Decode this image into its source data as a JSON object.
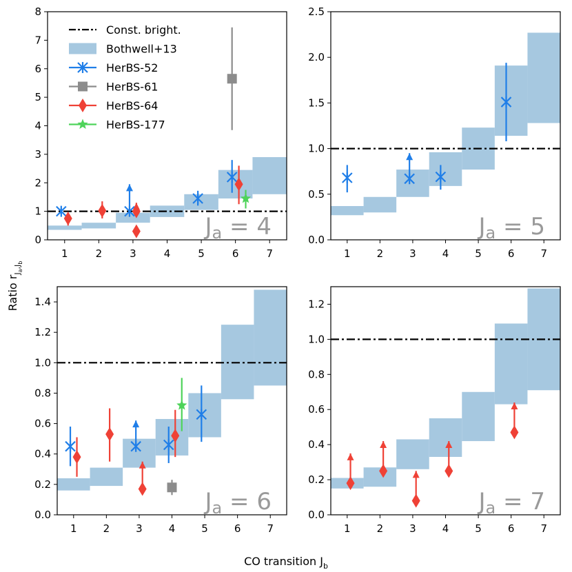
{
  "figure": {
    "xlabel": "CO transition J",
    "xlabel_sub": "b",
    "ylabel": "Ratio r",
    "ylabel_sub": "J",
    "ylabel_sub_a": "a",
    "ylabel_sub_sep": ",J",
    "ylabel_sub_b": "b"
  },
  "colors": {
    "const": "#000000",
    "band": "#a6c8e0",
    "HerBS-52": "#1f7ee8",
    "HerBS-61": "#8c8c8c",
    "HerBS-64": "#ef4136",
    "HerBS-177": "#4ed35a"
  },
  "legend": {
    "items": [
      {
        "label": "Const. bright.",
        "kind": "line"
      },
      {
        "label": "Bothwell+13",
        "kind": "band"
      },
      {
        "label": "HerBS-52",
        "kind": "x"
      },
      {
        "label": "HerBS-61",
        "kind": "square"
      },
      {
        "label": "HerBS-64",
        "kind": "diamond"
      },
      {
        "label": "HerBS-177",
        "kind": "star"
      }
    ]
  },
  "chart_data": [
    {
      "type": "errorbar",
      "panel_label": "J",
      "panel_label_sub": "a",
      "panel_label_value": " = 4",
      "Ja": 4,
      "xlim": [
        0.5,
        7.5
      ],
      "ylim": [
        0,
        8
      ],
      "xticks": [
        1,
        2,
        3,
        4,
        5,
        6,
        7
      ],
      "yticks": [
        0,
        1,
        2,
        3,
        4,
        5,
        6,
        7,
        8
      ],
      "ytick_labels": [
        "0",
        "1",
        "2",
        "3",
        "4",
        "5",
        "6",
        "7",
        "8"
      ],
      "const_line": 1.0,
      "band": [
        {
          "x": 1,
          "low": 0.35,
          "high": 0.5
        },
        {
          "x": 2,
          "low": 0.4,
          "high": 0.6
        },
        {
          "x": 3,
          "low": 0.6,
          "high": 0.95
        },
        {
          "x": 4,
          "low": 0.8,
          "high": 1.2
        },
        {
          "x": 5,
          "low": 1.05,
          "high": 1.6
        },
        {
          "x": 6,
          "low": 1.45,
          "high": 2.45
        },
        {
          "x": 7,
          "low": 1.6,
          "high": 2.9
        }
      ],
      "series": [
        {
          "name": "HerBS-52",
          "points": [
            {
              "x": 0.9,
              "y": 1.0,
              "lo": 0.9,
              "hi": 1.1
            },
            {
              "x": 2.9,
              "y": 1.0,
              "lo": 1.0,
              "hi": 1.95,
              "limit": "lower"
            },
            {
              "x": 4.9,
              "y": 1.45,
              "lo": 1.2,
              "hi": 1.72
            },
            {
              "x": 5.9,
              "y": 2.2,
              "lo": 1.65,
              "hi": 2.8
            }
          ]
        },
        {
          "name": "HerBS-61",
          "points": [
            {
              "x": 5.9,
              "y": 5.65,
              "lo": 3.85,
              "hi": 7.45
            }
          ]
        },
        {
          "name": "HerBS-64",
          "points": [
            {
              "x": 1.1,
              "y": 0.75,
              "lo": 0.5,
              "hi": 0.95
            },
            {
              "x": 2.1,
              "y": 1.02,
              "lo": 0.75,
              "hi": 1.35
            },
            {
              "x": 3.1,
              "y": 1.0,
              "lo": 1.0,
              "hi": 1.3,
              "limit": "lower"
            },
            {
              "x": 3.1,
              "y": 0.3,
              "lo": 0.15,
              "hi": 0.45
            },
            {
              "x": 6.1,
              "y": 1.95,
              "lo": 1.25,
              "hi": 2.6
            }
          ]
        },
        {
          "name": "HerBS-177",
          "points": [
            {
              "x": 6.3,
              "y": 1.45,
              "lo": 1.1,
              "hi": 1.75
            }
          ]
        }
      ]
    },
    {
      "type": "errorbar",
      "panel_label": "J",
      "panel_label_sub": "a",
      "panel_label_value": " = 5",
      "Ja": 5,
      "xlim": [
        0.5,
        7.5
      ],
      "ylim": [
        0,
        2.5
      ],
      "xticks": [
        1,
        2,
        3,
        4,
        5,
        6,
        7
      ],
      "yticks": [
        0,
        0.5,
        1.0,
        1.5,
        2.0,
        2.5
      ],
      "ytick_labels": [
        "0.0",
        "0.5",
        "1.0",
        "1.5",
        "2.0",
        "2.5"
      ],
      "const_line": 1.0,
      "band": [
        {
          "x": 1,
          "low": 0.27,
          "high": 0.37
        },
        {
          "x": 2,
          "low": 0.3,
          "high": 0.47
        },
        {
          "x": 3,
          "low": 0.47,
          "high": 0.77
        },
        {
          "x": 4,
          "low": 0.59,
          "high": 0.96
        },
        {
          "x": 5,
          "low": 0.77,
          "high": 1.23
        },
        {
          "x": 6,
          "low": 1.14,
          "high": 1.91
        },
        {
          "x": 7,
          "low": 1.28,
          "high": 2.27
        }
      ],
      "series": [
        {
          "name": "HerBS-52",
          "points": [
            {
              "x": 1,
              "y": 0.68,
              "lo": 0.52,
              "hi": 0.82
            },
            {
              "x": 2.9,
              "y": 0.67,
              "lo": 0.67,
              "hi": 0.95,
              "limit": "lower"
            },
            {
              "x": 3.85,
              "y": 0.69,
              "lo": 0.55,
              "hi": 0.82
            },
            {
              "x": 5.85,
              "y": 1.51,
              "lo": 1.08,
              "hi": 1.94
            }
          ]
        }
      ]
    },
    {
      "type": "errorbar",
      "panel_label": "J",
      "panel_label_sub": "a",
      "panel_label_value": " = 6",
      "Ja": 6,
      "xlim": [
        0.5,
        7.5
      ],
      "ylim": [
        0,
        1.5
      ],
      "xticks": [
        1,
        2,
        3,
        4,
        5,
        6,
        7
      ],
      "yticks": [
        0,
        0.2,
        0.4,
        0.6,
        0.8,
        1.0,
        1.2,
        1.4
      ],
      "ytick_labels": [
        "0.0",
        "0.2",
        "0.4",
        "0.6",
        "0.8",
        "1.0",
        "1.2",
        "1.4"
      ],
      "const_line": 1.0,
      "band": [
        {
          "x": 1,
          "low": 0.16,
          "high": 0.24
        },
        {
          "x": 2,
          "low": 0.19,
          "high": 0.31
        },
        {
          "x": 3,
          "low": 0.31,
          "high": 0.5
        },
        {
          "x": 4,
          "low": 0.39,
          "high": 0.63
        },
        {
          "x": 5,
          "low": 0.51,
          "high": 0.8
        },
        {
          "x": 6,
          "low": 0.76,
          "high": 1.25
        },
        {
          "x": 7,
          "low": 0.85,
          "high": 1.48
        }
      ],
      "series": [
        {
          "name": "HerBS-52",
          "points": [
            {
              "x": 0.9,
              "y": 0.45,
              "lo": 0.32,
              "hi": 0.58
            },
            {
              "x": 2.9,
              "y": 0.45,
              "lo": 0.45,
              "hi": 0.62,
              "limit": "lower"
            },
            {
              "x": 3.9,
              "y": 0.46,
              "lo": 0.34,
              "hi": 0.58
            },
            {
              "x": 4.9,
              "y": 0.66,
              "lo": 0.48,
              "hi": 0.85
            }
          ]
        },
        {
          "name": "HerBS-61",
          "points": [
            {
              "x": 4.0,
              "y": 0.18,
              "lo": 0.13,
              "hi": 0.23
            }
          ]
        },
        {
          "name": "HerBS-64",
          "points": [
            {
              "x": 1.1,
              "y": 0.38,
              "lo": 0.25,
              "hi": 0.51
            },
            {
              "x": 2.1,
              "y": 0.53,
              "lo": 0.35,
              "hi": 0.7
            },
            {
              "x": 3.1,
              "y": 0.17,
              "lo": 0.17,
              "hi": 0.35,
              "limit": "lower"
            },
            {
              "x": 4.1,
              "y": 0.52,
              "lo": 0.38,
              "hi": 0.69
            }
          ]
        },
        {
          "name": "HerBS-177",
          "points": [
            {
              "x": 4.3,
              "y": 0.72,
              "lo": 0.55,
              "hi": 0.9
            }
          ]
        }
      ]
    },
    {
      "type": "errorbar",
      "panel_label": "J",
      "panel_label_sub": "a",
      "panel_label_value": " = 7",
      "Ja": 7,
      "xlim": [
        0.5,
        7.5
      ],
      "ylim": [
        0,
        1.3
      ],
      "xticks": [
        1,
        2,
        3,
        4,
        5,
        6,
        7
      ],
      "yticks": [
        0,
        0.2,
        0.4,
        0.6,
        0.8,
        1.0,
        1.2
      ],
      "ytick_labels": [
        "0.0",
        "0.2",
        "0.4",
        "0.6",
        "0.8",
        "1.0",
        "1.2"
      ],
      "const_line": 1.0,
      "band": [
        {
          "x": 1,
          "low": 0.15,
          "high": 0.21
        },
        {
          "x": 2,
          "low": 0.16,
          "high": 0.27
        },
        {
          "x": 3,
          "low": 0.26,
          "high": 0.43
        },
        {
          "x": 4,
          "low": 0.33,
          "high": 0.55
        },
        {
          "x": 5,
          "low": 0.42,
          "high": 0.7
        },
        {
          "x": 6,
          "low": 0.63,
          "high": 1.09
        },
        {
          "x": 7,
          "low": 0.71,
          "high": 1.29
        }
      ],
      "series": [
        {
          "name": "HerBS-64",
          "points": [
            {
              "x": 1.1,
              "y": 0.18,
              "lo": 0.18,
              "hi": 0.35,
              "limit": "lower"
            },
            {
              "x": 2.1,
              "y": 0.25,
              "lo": 0.25,
              "hi": 0.42,
              "limit": "lower"
            },
            {
              "x": 3.1,
              "y": 0.08,
              "lo": 0.08,
              "hi": 0.25,
              "limit": "lower"
            },
            {
              "x": 4.1,
              "y": 0.25,
              "lo": 0.25,
              "hi": 0.42,
              "limit": "lower"
            },
            {
              "x": 6.1,
              "y": 0.47,
              "lo": 0.47,
              "hi": 0.64,
              "limit": "lower"
            }
          ]
        }
      ]
    }
  ]
}
